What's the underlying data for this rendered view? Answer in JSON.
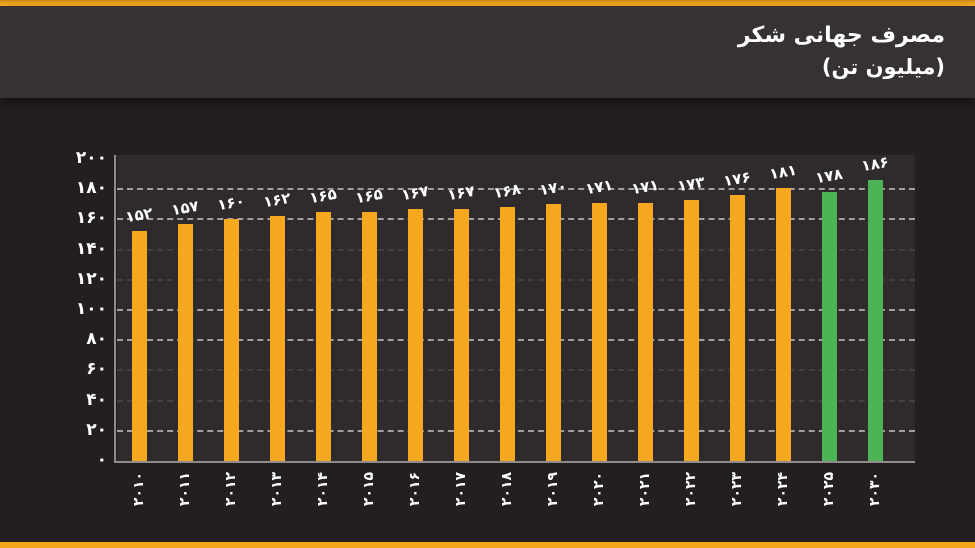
{
  "page": {
    "background": "#231F20",
    "header_background": "#363233",
    "accent_color": "#F2A71C"
  },
  "header": {
    "title_line1": "مصرف جهانی شکر",
    "title_line2": "(میلیون تن)"
  },
  "chart_data": {
    "type": "bar",
    "title": "مصرف جهانی شکر (میلیون تن)",
    "title_en_gloss": "World sugar consumption (million tons)",
    "categories": [
      "۲۰۱۰",
      "۲۰۱۱",
      "۲۰۱۲",
      "۲۰۱۳",
      "۲۰۱۴",
      "۲۰۱۵",
      "۲۰۱۶",
      "۲۰۱۷",
      "۲۰۱۸",
      "۲۰۱۹",
      "۲۰۲۰",
      "۲۰۲۱",
      "۲۰۲۲",
      "۲۰۲۳",
      "۲۰۲۴",
      "۲۰۲۵",
      "۲۰۳۰"
    ],
    "categories_latin": [
      "2010",
      "2011",
      "2012",
      "2013",
      "2014",
      "2015",
      "2016",
      "2017",
      "2018",
      "2019",
      "2020",
      "2021",
      "2022",
      "2023",
      "2024",
      "2025",
      "2030"
    ],
    "values": [
      152,
      157,
      160,
      162,
      165,
      165,
      167,
      167,
      168,
      170,
      171,
      171,
      173,
      176,
      181,
      178,
      186
    ],
    "value_labels": [
      "۱۵۲",
      "۱۵۷",
      "۱۶۰",
      "۱۶۲",
      "۱۶۵",
      "۱۶۵",
      "۱۶۷",
      "۱۶۷",
      "۱۶۸",
      "۱۷۰",
      "۱۷۱",
      "۱۷۱",
      "۱۷۳",
      "۱۷۶",
      "۱۸۱",
      "۱۷۸",
      "۱۸۶"
    ],
    "bar_color": "#F5A81F",
    "forecast_color": "#4CB454",
    "forecast_indices": [
      15,
      16
    ],
    "xlabel": "",
    "ylabel": "",
    "ylim": [
      0,
      200
    ],
    "ytick_step": 20,
    "ytick_labels": [
      "۰",
      "۲۰",
      "۴۰",
      "۶۰",
      "۸۰",
      "۱۰۰",
      "۱۲۰",
      "۱۴۰",
      "۱۶۰",
      "۱۸۰",
      "۲۰۰"
    ],
    "grid": "horizontal-dashed",
    "legend": "none"
  }
}
